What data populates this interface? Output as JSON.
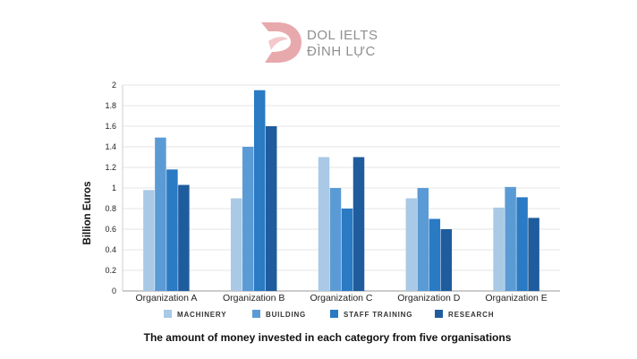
{
  "logo": {
    "line1": "DOL IELTS",
    "line2": "ĐÌNH LỰC",
    "mark_color": "#e8a9ad",
    "text_color": "#8f8f8f"
  },
  "chart_data": {
    "type": "bar",
    "title": "The amount of  money invested in each category from five organisations",
    "xlabel": "",
    "ylabel": "Billion Euros",
    "ylim": [
      0,
      2
    ],
    "yticks": [
      "0",
      "0.2",
      "0.4",
      "0.6",
      "0.8",
      "1",
      "1.2",
      "1.4",
      "1.6",
      "1.8",
      "2"
    ],
    "grid": true,
    "legend_position": "bottom",
    "categories": [
      "Organization A",
      "Organization B",
      "Organization C",
      "Organization D",
      "Organization E"
    ],
    "series": [
      {
        "name": "MACHINERY",
        "color": "#a9c9e6",
        "values": [
          0.98,
          0.9,
          1.3,
          0.9,
          0.81
        ]
      },
      {
        "name": "BUILDING",
        "color": "#5b9bd5",
        "values": [
          1.49,
          1.4,
          1.0,
          1.0,
          1.01
        ]
      },
      {
        "name": "STAFF TRAINING",
        "color": "#2a7ac4",
        "values": [
          1.18,
          1.95,
          0.8,
          0.7,
          0.91
        ]
      },
      {
        "name": "RESEARCH",
        "color": "#1f5c9e",
        "values": [
          1.03,
          1.6,
          1.3,
          0.6,
          0.71
        ]
      }
    ]
  }
}
